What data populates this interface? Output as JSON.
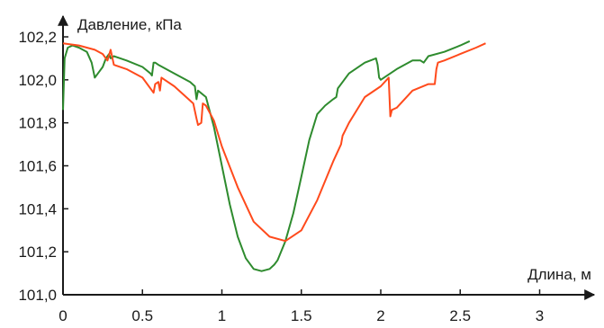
{
  "chart_data": {
    "type": "line",
    "ylabel": "Давление, кПа",
    "xlabel": "Длина, м",
    "xlim": [
      0,
      3.3
    ],
    "ylim": [
      101.0,
      102.2
    ],
    "grid": false,
    "x_ticks": [
      {
        "value": 0,
        "label": "0"
      },
      {
        "value": 0.5,
        "label": "0.5"
      },
      {
        "value": 1,
        "label": "1"
      },
      {
        "value": 1.5,
        "label": "1.5"
      },
      {
        "value": 2,
        "label": "2"
      },
      {
        "value": 2.5,
        "label": "2.5"
      },
      {
        "value": 3,
        "label": "3"
      }
    ],
    "y_ticks": [
      {
        "value": 101.0,
        "label": "101,0"
      },
      {
        "value": 101.2,
        "label": "101,2"
      },
      {
        "value": 101.4,
        "label": "101,4"
      },
      {
        "value": 101.6,
        "label": "101,6"
      },
      {
        "value": 101.8,
        "label": "101,8"
      },
      {
        "value": 102.0,
        "label": "102,0"
      },
      {
        "value": 102.2,
        "label": "102,2"
      }
    ],
    "series": [
      {
        "color": "#2e8b2e",
        "x": [
          0,
          0.01,
          0.03,
          0.06,
          0.1,
          0.15,
          0.18,
          0.2,
          0.22,
          0.25,
          0.27,
          0.29,
          0.3,
          0.32,
          0.4,
          0.5,
          0.55,
          0.56,
          0.57,
          0.58,
          0.6,
          0.7,
          0.8,
          0.83,
          0.84,
          0.85,
          0.9,
          0.95,
          1.0,
          1.05,
          1.1,
          1.15,
          1.2,
          1.25,
          1.3,
          1.33,
          1.35,
          1.4,
          1.45,
          1.5,
          1.55,
          1.6,
          1.65,
          1.7,
          1.72,
          1.73,
          1.8,
          1.9,
          1.97,
          1.98,
          1.99,
          2.0,
          2.1,
          2.2,
          2.25,
          2.27,
          2.3,
          2.4,
          2.5,
          2.56
        ],
        "y": [
          101.86,
          102.1,
          102.15,
          102.16,
          102.15,
          102.13,
          102.08,
          102.01,
          102.03,
          102.06,
          102.1,
          102.12,
          102.1,
          102.11,
          102.09,
          102.06,
          102.03,
          102.02,
          102.08,
          102.08,
          102.07,
          102.03,
          101.99,
          101.97,
          101.91,
          101.95,
          101.92,
          101.78,
          101.6,
          101.42,
          101.27,
          101.17,
          101.12,
          101.11,
          101.12,
          101.14,
          101.16,
          101.25,
          101.38,
          101.55,
          101.72,
          101.84,
          101.88,
          101.91,
          101.92,
          101.96,
          102.03,
          102.08,
          102.1,
          102.07,
          102.01,
          102.0,
          102.05,
          102.09,
          102.09,
          102.08,
          102.11,
          102.13,
          102.16,
          102.18
        ]
      },
      {
        "color": "#ff4a1c",
        "x": [
          0,
          0.1,
          0.2,
          0.25,
          0.28,
          0.3,
          0.32,
          0.4,
          0.5,
          0.57,
          0.58,
          0.6,
          0.61,
          0.62,
          0.7,
          0.82,
          0.84,
          0.85,
          0.87,
          0.88,
          0.9,
          0.95,
          1.0,
          1.1,
          1.2,
          1.3,
          1.4,
          1.5,
          1.6,
          1.7,
          1.75,
          1.76,
          1.8,
          1.9,
          2.0,
          2.05,
          2.06,
          2.07,
          2.1,
          2.2,
          2.3,
          2.34,
          2.35,
          2.36,
          2.4,
          2.5,
          2.6,
          2.66
        ],
        "y": [
          102.17,
          102.16,
          102.14,
          102.12,
          102.09,
          102.14,
          102.07,
          102.05,
          102.01,
          101.94,
          101.98,
          101.99,
          101.95,
          102.01,
          101.97,
          101.89,
          101.82,
          101.79,
          101.8,
          101.89,
          101.88,
          101.81,
          101.69,
          101.5,
          101.34,
          101.27,
          101.25,
          101.3,
          101.44,
          101.62,
          101.7,
          101.74,
          101.8,
          101.92,
          101.97,
          102.01,
          101.83,
          101.86,
          101.87,
          101.95,
          101.98,
          101.98,
          102.05,
          102.08,
          102.09,
          102.12,
          102.15,
          102.17
        ]
      }
    ]
  }
}
